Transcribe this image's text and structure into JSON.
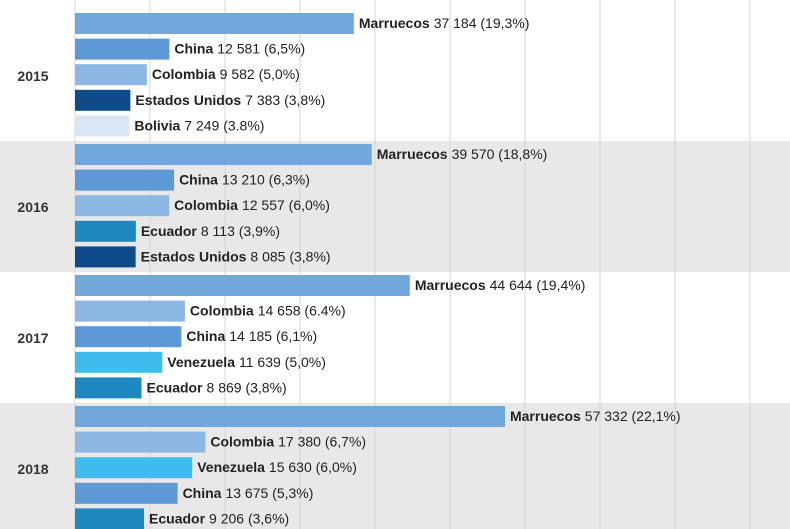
{
  "chart_data": {
    "type": "grouped-hbar",
    "xlim": [
      0,
      90000
    ],
    "xticks": [
      0,
      10000,
      20000,
      30000,
      40000,
      50000,
      60000,
      70000,
      80000,
      90000
    ],
    "grid": true,
    "groups": [
      {
        "name": "2015",
        "categories": [
          "Marruecos",
          "China",
          "Colombia",
          "Estados Unidos",
          "Bolivia"
        ],
        "values": [
          37184,
          12581,
          9582,
          7383,
          7249
        ],
        "value_labels": [
          "37 184 (19,3%)",
          "12 581 (6,5%)",
          "9 582 (5,0%)",
          "7 383 (3,8%)",
          "7 249 (3.8%)"
        ],
        "colors": [
          "#72a7dc",
          "#5c99d6",
          "#8db7e3",
          "#0f4a8a",
          "#d9e7f5"
        ]
      },
      {
        "name": "2016",
        "categories": [
          "Marruecos",
          "China",
          "Colombia",
          "Ecuador",
          "Estados Unidos"
        ],
        "values": [
          39570,
          13210,
          12557,
          8113,
          8085
        ],
        "value_labels": [
          "39 570 (18,8%)",
          "13 210 (6,3%)",
          "12 557 (6,0%)",
          "8 113 (3,9%)",
          "8 085 (3,8%)"
        ],
        "colors": [
          "#72a7dc",
          "#5c99d6",
          "#8db7e3",
          "#1f88c0",
          "#0f4a8a"
        ]
      },
      {
        "name": "2017",
        "categories": [
          "Marruecos",
          "Colombia",
          "China",
          "Venezuela",
          "Ecuador"
        ],
        "values": [
          44644,
          14658,
          14185,
          11639,
          8869
        ],
        "value_labels": [
          "44 644 (19,4%)",
          "14 658 (6.4%)",
          "14 185 (6,1%)",
          "11 639 (5,0%)",
          "8 869 (3,8%)"
        ],
        "colors": [
          "#72a7dc",
          "#8db7e3",
          "#5c99d6",
          "#3fbcee",
          "#1f88c0"
        ]
      },
      {
        "name": "2018",
        "categories": [
          "Marruecos",
          "Colombia",
          "Venezuela",
          "China",
          "Ecuador"
        ],
        "values": [
          57332,
          17380,
          15630,
          13675,
          9206
        ],
        "value_labels": [
          "57 332 (22,1%)",
          "17 380 (6,7%)",
          "15 630 (6,0%)",
          "13 675 (5,3%)",
          "9 206 (3,6%)"
        ],
        "colors": [
          "#72a7dc",
          "#8db7e3",
          "#3fbcee",
          "#5c99d6",
          "#1f88c0"
        ]
      }
    ]
  }
}
